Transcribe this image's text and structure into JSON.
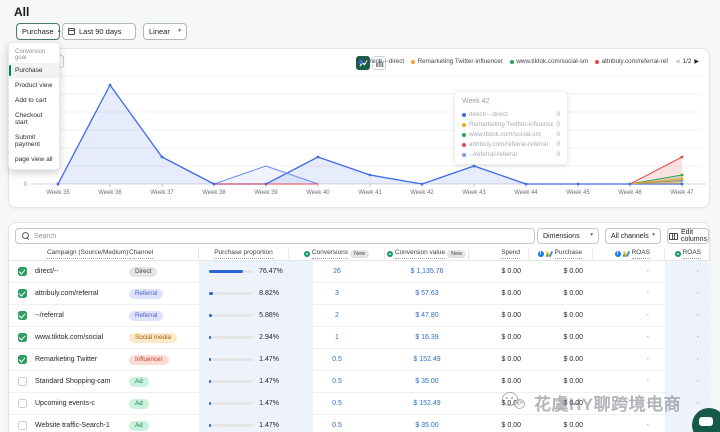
{
  "page": {
    "title": "All"
  },
  "toolbar": {
    "goal": {
      "label": "Purchase"
    },
    "date_range": {
      "label": "Last 90 days"
    },
    "scale": {
      "label": "Linear"
    },
    "goal_menu": {
      "header": "Conversion goal",
      "items": [
        {
          "label": "Purchase",
          "selected": true
        },
        {
          "label": "Product view",
          "selected": false
        },
        {
          "label": "Add to cart",
          "selected": false
        },
        {
          "label": "Checkout start",
          "selected": false
        },
        {
          "label": "Submit payment",
          "selected": false
        },
        {
          "label": "page view all",
          "selected": false
        }
      ]
    }
  },
  "chart": {
    "legend": {
      "items": [
        {
          "label": "direct/---direct",
          "color": "#3d6be8"
        },
        {
          "label": "Remarketing Twitter-influencer",
          "color": "#f5a623"
        },
        {
          "label": "www.tiktok.com/social-sm",
          "color": "#2da44e"
        },
        {
          "label": "attribuly.com/referral-ref",
          "color": "#e5484d"
        }
      ],
      "pagination": "1/2"
    },
    "tooltip": {
      "title": "Week 42",
      "rows": [
        {
          "label": "direct/---direct",
          "value": "0",
          "color": "#3d6be8"
        },
        {
          "label": "Remarketing Twittter-influencer",
          "value": "0",
          "color": "#f5a623"
        },
        {
          "label": "www.tiktok.com/social-sm",
          "value": "0",
          "color": "#2da44e"
        },
        {
          "label": "attribuly.com/referral-referral",
          "value": "0",
          "color": "#e5484d"
        },
        {
          "label": "--/referral-referral",
          "value": "0",
          "color": "#7b9af0"
        }
      ]
    }
  },
  "chart_data": {
    "type": "line",
    "title": "",
    "xlabel": "",
    "ylabel": "",
    "categories": [
      "Week 35",
      "Week 36",
      "Week 37",
      "Week 38",
      "Week 39",
      "Week 40",
      "Week 41",
      "Week 42",
      "Week 43",
      "Week 44",
      "Week 45",
      "Week 46",
      "Week 47"
    ],
    "ylim": [
      0,
      12
    ],
    "ytick_step": 2,
    "grid": true,
    "legend_position": "top-right",
    "series": [
      {
        "name": "direct/---direct",
        "color": "#3d6be8",
        "fill_opacity": 0.13,
        "markers": "all",
        "values": [
          0,
          11,
          3,
          0,
          0,
          3,
          1,
          0,
          2,
          0,
          0,
          0,
          0
        ]
      },
      {
        "name": "--/referral-referral",
        "color": "#6b8df2",
        "fill_opacity": 0.1,
        "markers": "last",
        "values": [
          null,
          null,
          null,
          0,
          2,
          0,
          null,
          null,
          null,
          null,
          null,
          0,
          0.4
        ]
      },
      {
        "name": "attribuly.com/referral-referral",
        "color": "#e5484d",
        "fill_opacity": 0.16,
        "markers": "last",
        "values": [
          null,
          null,
          null,
          0,
          0,
          0,
          null,
          null,
          null,
          null,
          null,
          0,
          3
        ]
      },
      {
        "name": "www.tiktok.com/social-sm",
        "color": "#2da44e",
        "fill_opacity": 0.22,
        "markers": "last",
        "values": [
          null,
          null,
          null,
          null,
          null,
          null,
          null,
          null,
          null,
          null,
          null,
          0,
          1
        ]
      },
      {
        "name": "Remarketing Twitter-influencer",
        "color": "#f5a623",
        "fill_opacity": 0.28,
        "markers": "last",
        "values": [
          null,
          null,
          null,
          null,
          null,
          null,
          null,
          null,
          null,
          null,
          null,
          0,
          0.6
        ]
      }
    ]
  },
  "table": {
    "search_placeholder": "Search",
    "dimensions_label": "Dimensions",
    "channels_label": "All channels",
    "edit_columns_label": "Edit columns",
    "new_badge": "New",
    "headers": {
      "campaign": "Campaign (Source/Medium)",
      "channel": "Channel",
      "proportion": "Purchase proportion",
      "conversions": "Conversions",
      "conversion_value": "Conversion value",
      "spend": "Spend",
      "purchase": "Purchase",
      "roas_ads": "ROAS",
      "roas": "ROAS"
    },
    "rows": [
      {
        "campaign": "direct/--",
        "channel": "Direct",
        "channel_type": "direct",
        "proportion": 76.47,
        "proportion_pct": "76.47%",
        "conversions": "26",
        "conversion_value": "$ 1,135.76",
        "spend": "$ 0.00",
        "purchase": "$ 0.00",
        "roas_ads": "-",
        "roas": "-",
        "checked": true
      },
      {
        "campaign": "attribuly.com/referral",
        "channel": "Referral",
        "channel_type": "referral",
        "proportion": 8.82,
        "proportion_pct": "8.82%",
        "conversions": "3",
        "conversion_value": "$ 57.63",
        "spend": "$ 0.00",
        "purchase": "$ 0.00",
        "roas_ads": "-",
        "roas": "-",
        "checked": true
      },
      {
        "campaign": "--/referral",
        "channel": "Referral",
        "channel_type": "referral",
        "proportion": 5.88,
        "proportion_pct": "5.88%",
        "conversions": "2",
        "conversion_value": "$ 47.80",
        "spend": "$ 0.00",
        "purchase": "$ 0.00",
        "roas_ads": "-",
        "roas": "-",
        "checked": true
      },
      {
        "campaign": "www.tiktok.com/social",
        "channel": "Social media",
        "channel_type": "social",
        "proportion": 2.94,
        "proportion_pct": "2.94%",
        "conversions": "1",
        "conversion_value": "$ 16.39",
        "spend": "$ 0.00",
        "purchase": "$ 0.00",
        "roas_ads": "-",
        "roas": "-",
        "checked": true
      },
      {
        "campaign": "Remarketing Twitter",
        "channel": "Influencer",
        "channel_type": "influencer",
        "proportion": 1.47,
        "proportion_pct": "1.47%",
        "conversions": "0.5",
        "conversion_value": "$ 152.49",
        "spend": "$ 0.00",
        "purchase": "$ 0.00",
        "roas_ads": "-",
        "roas": "-",
        "checked": true
      },
      {
        "campaign": "Standard Shopping-cam",
        "channel": "Ad",
        "channel_type": "ad",
        "proportion": 1.47,
        "proportion_pct": "1.47%",
        "conversions": "0.5",
        "conversion_value": "$ 35.00",
        "spend": "$ 0.00",
        "purchase": "$ 0.00",
        "roas_ads": "-",
        "roas": "-",
        "checked": false
      },
      {
        "campaign": "Upcoming events-c",
        "channel": "Ad",
        "channel_type": "ad",
        "proportion": 1.47,
        "proportion_pct": "1.47%",
        "conversions": "0.5",
        "conversion_value": "$ 152.49",
        "spend": "$ 0.00",
        "purchase": "$ 0.00",
        "roas_ads": "-",
        "roas": "-",
        "checked": false
      },
      {
        "campaign": "Website traffic-Search-1",
        "channel": "Ad",
        "channel_type": "ad",
        "proportion": 1.47,
        "proportion_pct": "1.47%",
        "conversions": "0.5",
        "conversion_value": "$ 35.00",
        "spend": "$ 0.00",
        "purchase": "$ 0.00",
        "roas_ads": "-",
        "roas": "-",
        "checked": false
      }
    ]
  },
  "watermark": {
    "text": "花虞HY聊跨境电商"
  }
}
